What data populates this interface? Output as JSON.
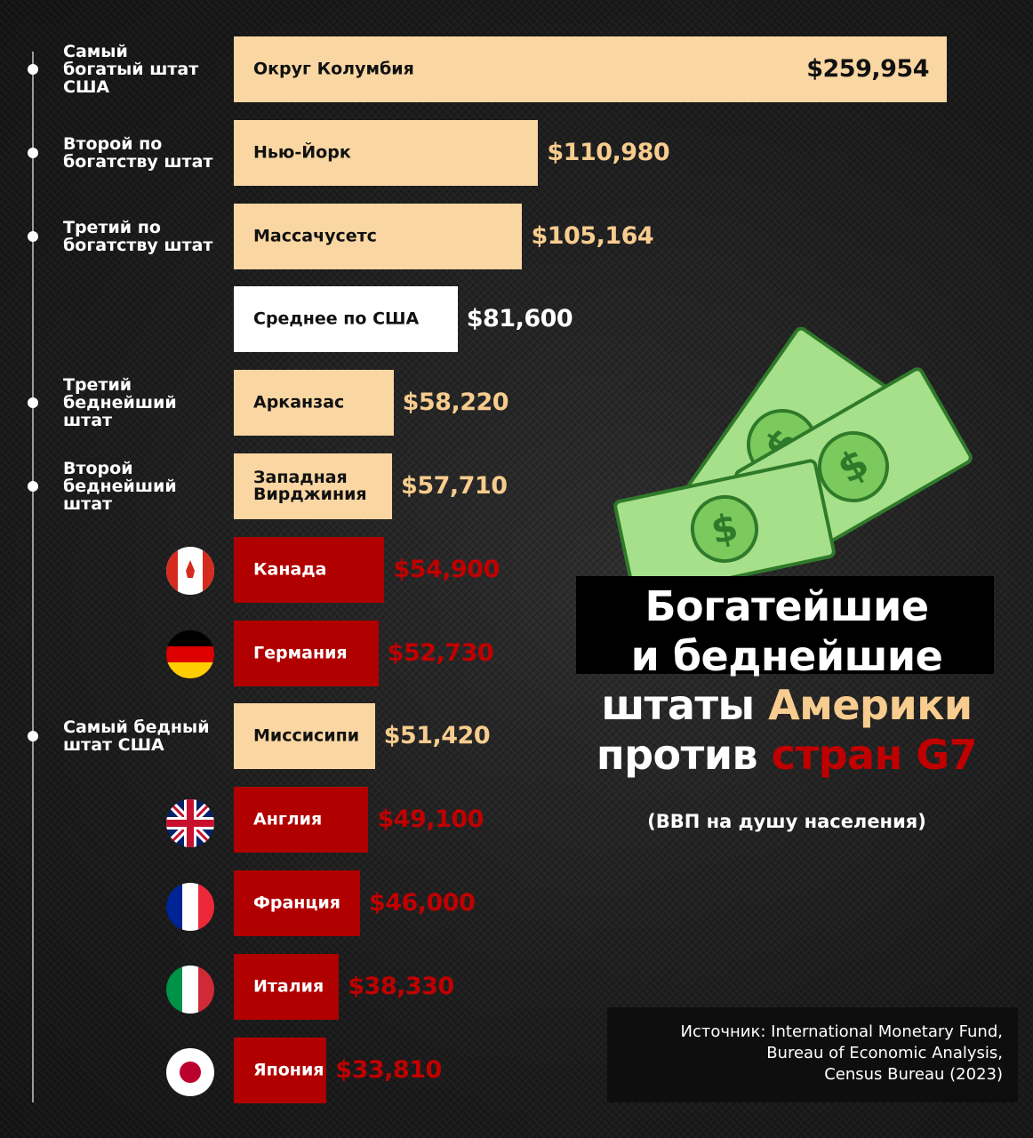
{
  "chart_data": {
    "type": "bar",
    "title_lines": [
      [
        "Богатейшие"
      ],
      [
        "и беднейшие"
      ],
      [
        "штаты ",
        "Америки"
      ],
      [
        "против ",
        "стран G7"
      ]
    ],
    "subtitle": "(ВВП на душу населения)",
    "source": [
      "Источник: International Monetary Fund,",
      "Bureau of Economic Analysis,",
      "Census Bureau (2023)"
    ],
    "categories": [
      "Округ Колумбия",
      "Нью-Йорк",
      "Массачусетс",
      "Среднее по США",
      "Арканзас",
      "Западная Вирджиния",
      "Канада",
      "Германия",
      "Миссисипи",
      "Англия",
      "Франция",
      "Италия",
      "Япония"
    ],
    "values": [
      259954,
      110980,
      105164,
      81600,
      58220,
      57710,
      54900,
      52730,
      51420,
      49100,
      46000,
      38330,
      33810
    ],
    "value_labels": [
      "$259,954",
      "$110,980",
      "$105,164",
      "$81,600",
      "$58,220",
      "$57,710",
      "$54,900",
      "$52,730",
      "$51,420",
      "$49,100",
      "$46,000",
      "$38,330",
      "$33,810"
    ],
    "colors": [
      "#f9d6a2",
      "#f9d6a2",
      "#f9d6a2",
      "#ffffff",
      "#f9d6a2",
      "#f9d6a2",
      "#b10000",
      "#b10000",
      "#f9d6a2",
      "#b10000",
      "#b10000",
      "#b10000",
      "#b10000"
    ],
    "value_colors": [
      "#111111",
      "#f7cc8e",
      "#f7cc8e",
      "#ffffff",
      "#f7cc8e",
      "#f7cc8e",
      "#c00000",
      "#c00000",
      "#f7cc8e",
      "#c00000",
      "#c00000",
      "#c00000",
      "#c00000"
    ],
    "annotations": [
      [
        "Самый",
        "богатый штат",
        "США"
      ],
      [
        "Второй по",
        "богатству штат"
      ],
      [
        "Третий по",
        "богатству штат"
      ],
      null,
      [
        "Третий",
        "беднейший",
        "штат"
      ],
      [
        "Второй",
        "беднейший",
        "штат"
      ],
      null,
      null,
      [
        "Самый бедный",
        "штат США"
      ],
      null,
      null,
      null,
      null
    ]
  }
}
